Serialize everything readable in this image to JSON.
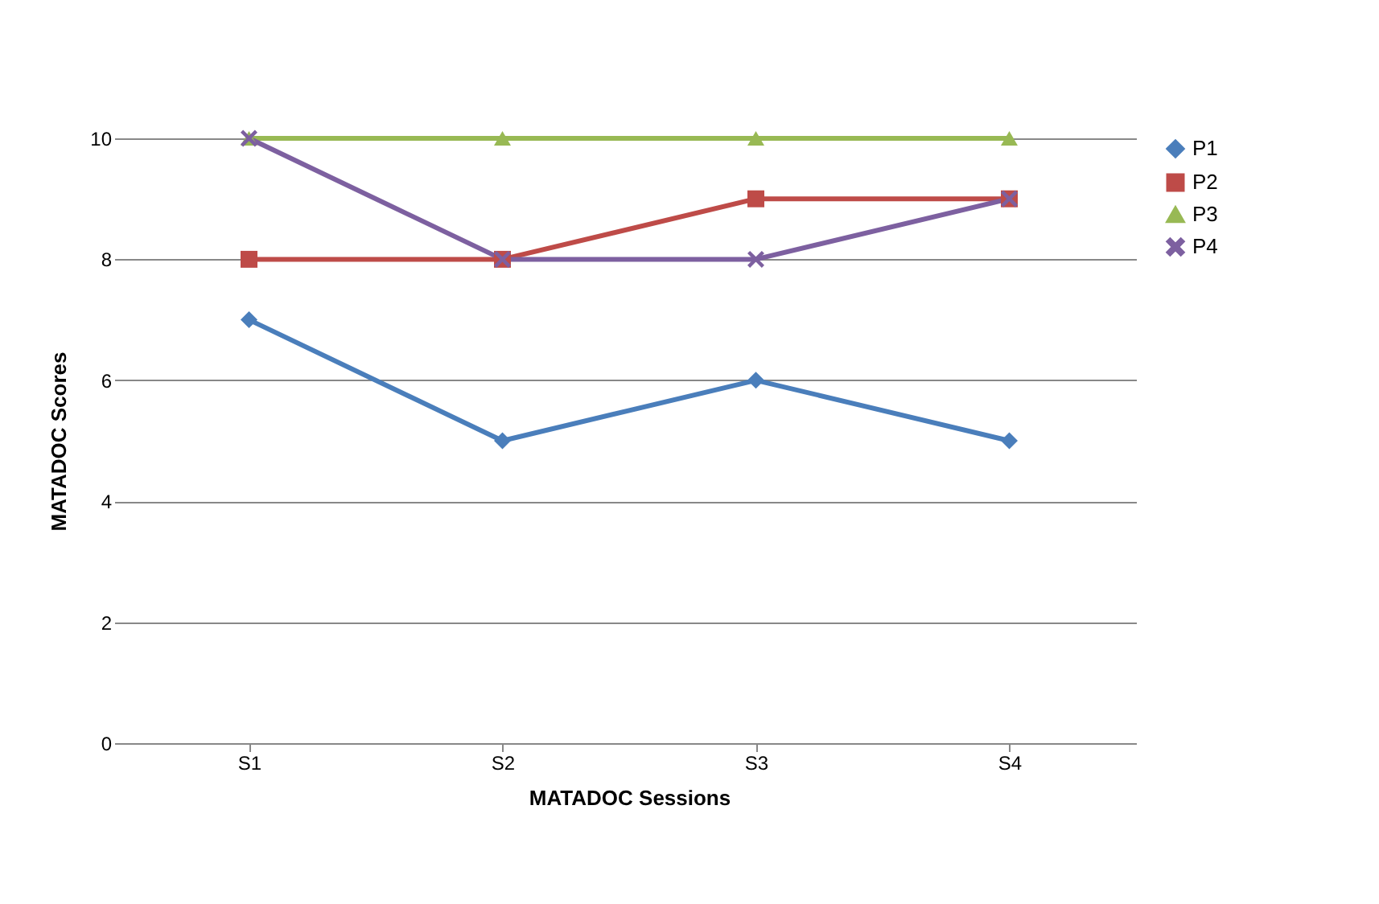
{
  "chart_data": {
    "type": "line",
    "xlabel": "MATADOC Sessions",
    "ylabel": "MATADOC Scores",
    "categories": [
      "S1",
      "S2",
      "S3",
      "S4"
    ],
    "series": [
      {
        "name": "P1",
        "color": "#4a7ebb",
        "marker": "diamond",
        "values": [
          7,
          5,
          6,
          5
        ]
      },
      {
        "name": "P2",
        "color": "#be4b48",
        "marker": "square",
        "values": [
          8,
          8,
          9,
          9
        ]
      },
      {
        "name": "P3",
        "color": "#98b954",
        "marker": "triangle",
        "values": [
          10,
          10,
          10,
          10
        ]
      },
      {
        "name": "P4",
        "color": "#7d60a0",
        "marker": "cross",
        "values": [
          10,
          8,
          8,
          9
        ]
      }
    ],
    "ylim": [
      0,
      10
    ],
    "yticks": [
      0,
      2,
      4,
      6,
      8,
      10
    ],
    "grid": "y",
    "legend": "right",
    "line_style": "solid"
  }
}
